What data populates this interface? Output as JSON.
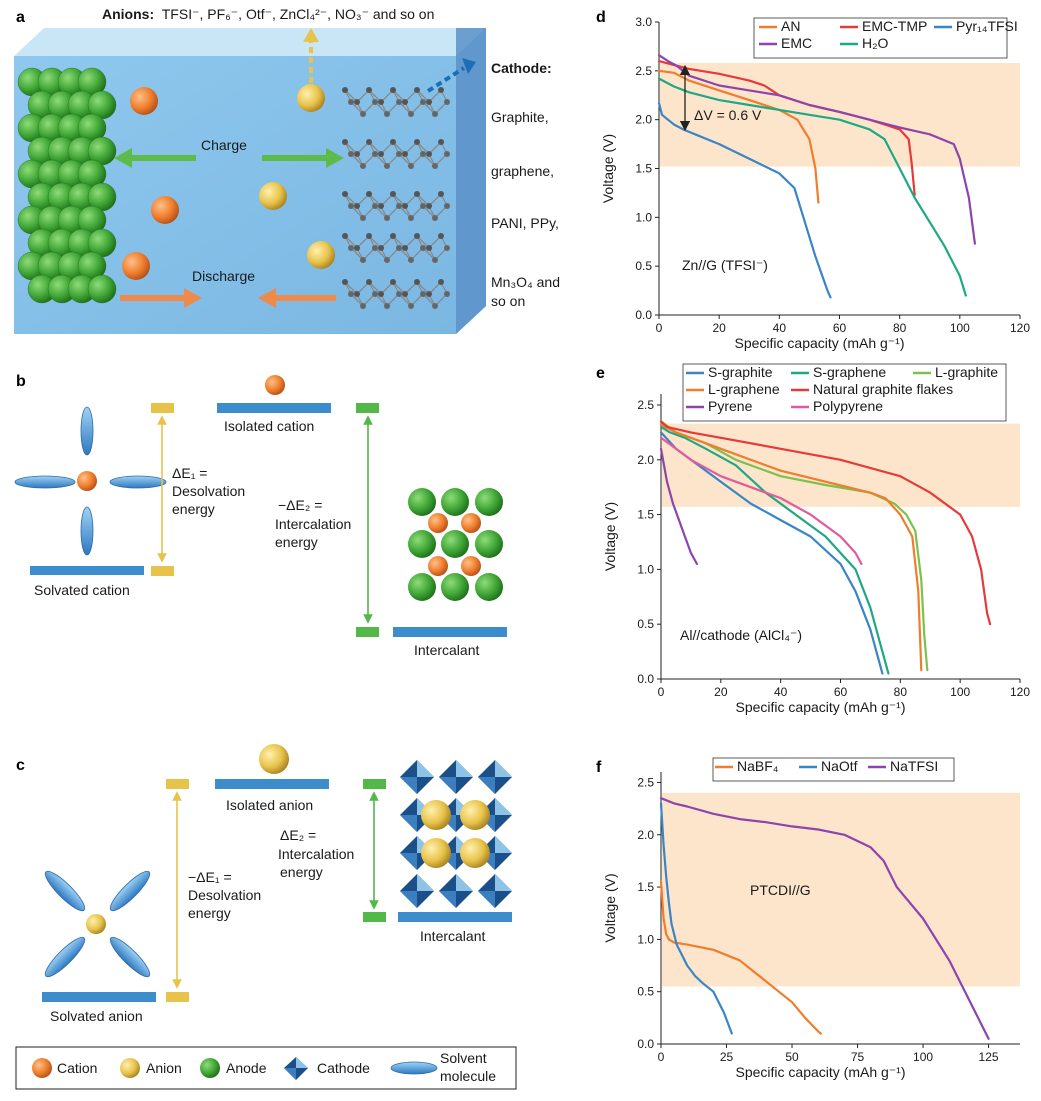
{
  "panels": {
    "a": "a",
    "b": "b",
    "c": "c",
    "d": "d",
    "e": "e",
    "f": "f"
  },
  "panel_a": {
    "anions_label": "Anions:",
    "anions_list": "TFSI⁻, PF₆⁻, Otf⁻, ZnCl₄²⁻, NO₃⁻ and so on",
    "cathode_title": "Cathode:",
    "cathode_items": [
      "Graphite,",
      "graphene,",
      "PANI, PPy,",
      "Mn₃O₄ and",
      "so on"
    ],
    "charge": "Charge",
    "discharge": "Discharge"
  },
  "panel_b": {
    "isolated": "Isolated cation",
    "solvated": "Solvated cation",
    "de1": [
      "ΔE₁ =",
      "Desolvation",
      "energy"
    ],
    "de2": [
      "−ΔE₂ =",
      "Intercalation",
      "energy"
    ],
    "intercalant": "Intercalant"
  },
  "panel_c": {
    "isolated": "Isolated anion",
    "solvated": "Solvated anion",
    "de1": [
      "−ΔE₁ =",
      "Desolvation",
      "energy"
    ],
    "de2": [
      "ΔE₂ =",
      "Intercalation",
      "energy"
    ],
    "intercalant": "Intercalant"
  },
  "legend": {
    "cation": "Cation",
    "anion": "Anion",
    "anode": "Anode",
    "cathode": "Cathode",
    "solvent": [
      "Solvent",
      "molecule"
    ]
  },
  "colors": {
    "cation": "#ef7d2b",
    "anion": "#e8c34a",
    "anode": "#4caf3e",
    "bar_blue": "#3d8ccc",
    "bar_yellow": "#e8c34a",
    "bar_green": "#52b848",
    "band": "#fde5cc",
    "cathode_dark": "#1b4f8a",
    "cathode_light": "#8ec3e8"
  },
  "chart_data": [
    {
      "type": "line",
      "panel": "d",
      "xlabel": "Specific capacity (mAh g⁻¹)",
      "ylabel": "Voltage (V)",
      "xlim": [
        0,
        120
      ],
      "ylim": [
        0,
        3.0
      ],
      "xticks": [
        "0",
        "20",
        "40",
        "60",
        "80",
        "100",
        "120"
      ],
      "yticks": [
        "0.0",
        "0.5",
        "1.0",
        "1.5",
        "2.0",
        "2.5",
        "3.0"
      ],
      "annotation": "Zn//G (TFSI⁻)",
      "dv_label": "ΔV = 0.6 V",
      "band": [
        1.52,
        2.58
      ],
      "legend_rows": [
        [
          "AN",
          "EMC-TMP",
          "Pyr₁₄TFSI"
        ],
        [
          "EMC",
          "H₂O"
        ]
      ],
      "series": [
        {
          "name": "AN",
          "color": "#ef7d2b",
          "x": [
            0,
            5,
            10,
            20,
            30,
            40,
            46,
            50,
            52,
            53
          ],
          "y": [
            2.5,
            2.48,
            2.4,
            2.3,
            2.2,
            2.1,
            2.0,
            1.8,
            1.5,
            1.15
          ]
        },
        {
          "name": "EMC-TMP",
          "color": "#e63a3a",
          "x": [
            0,
            5,
            10,
            20,
            30,
            35,
            40,
            50,
            60,
            70,
            80,
            83,
            84,
            85
          ],
          "y": [
            2.6,
            2.56,
            2.52,
            2.47,
            2.4,
            2.35,
            2.25,
            2.15,
            2.08,
            2.0,
            1.9,
            1.8,
            1.55,
            1.23
          ]
        },
        {
          "name": "Pyr₁₄TFSI",
          "color": "#3a85c6",
          "x": [
            0,
            1,
            3,
            5,
            8,
            12,
            20,
            30,
            40,
            45,
            48,
            52,
            56,
            57
          ],
          "y": [
            2.17,
            2.05,
            2.0,
            1.95,
            1.9,
            1.85,
            1.75,
            1.6,
            1.45,
            1.3,
            1.0,
            0.6,
            0.25,
            0.18
          ]
        },
        {
          "name": "EMC",
          "color": "#8e44ad",
          "x": [
            0,
            3,
            6,
            10,
            20,
            30,
            40,
            50,
            60,
            70,
            80,
            90,
            98,
            100,
            103,
            105
          ],
          "y": [
            2.66,
            2.6,
            2.55,
            2.45,
            2.35,
            2.3,
            2.25,
            2.15,
            2.08,
            2.0,
            1.92,
            1.85,
            1.75,
            1.6,
            1.2,
            0.73
          ]
        },
        {
          "name": "H₂O",
          "color": "#1ea884",
          "x": [
            0,
            5,
            10,
            20,
            30,
            40,
            50,
            60,
            70,
            75,
            80,
            85,
            90,
            95,
            100,
            102
          ],
          "y": [
            2.42,
            2.34,
            2.28,
            2.2,
            2.15,
            2.1,
            2.05,
            2.0,
            1.9,
            1.8,
            1.5,
            1.2,
            0.95,
            0.7,
            0.4,
            0.2
          ]
        }
      ]
    },
    {
      "type": "line",
      "panel": "e",
      "xlabel": "Specific capacity (mAh g⁻¹)",
      "ylabel": "Voltage (V)",
      "xlim": [
        0,
        120
      ],
      "ylim": [
        0,
        2.6
      ],
      "xticks": [
        "0",
        "20",
        "40",
        "60",
        "80",
        "100",
        "120"
      ],
      "yticks": [
        "0.0",
        "0.5",
        "1.0",
        "1.5",
        "2.0",
        "2.5"
      ],
      "annotation": "Al//cathode (AlCl₄⁻)",
      "band": [
        1.57,
        2.33
      ],
      "legend_rows": [
        [
          "S-graphite",
          "S-graphene",
          "L-graphite"
        ],
        [
          "L-graphene",
          "Natural graphite flakes"
        ],
        [
          "Pyrene",
          "Polypyrene"
        ]
      ],
      "series": [
        {
          "name": "S-graphite",
          "color": "#3a85c6",
          "x": [
            0,
            5,
            10,
            20,
            30,
            40,
            50,
            60,
            65,
            70,
            73,
            74
          ],
          "y": [
            2.25,
            2.1,
            2.0,
            1.8,
            1.6,
            1.45,
            1.3,
            1.05,
            0.8,
            0.45,
            0.15,
            0.05
          ]
        },
        {
          "name": "S-graphene",
          "color": "#1ea884",
          "x": [
            0,
            3,
            8,
            15,
            25,
            35,
            45,
            55,
            65,
            70,
            74,
            76
          ],
          "y": [
            2.3,
            2.25,
            2.2,
            2.1,
            1.95,
            1.7,
            1.5,
            1.3,
            1.0,
            0.65,
            0.25,
            0.05
          ]
        },
        {
          "name": "L-graphite",
          "color": "#7dc04b",
          "x": [
            0,
            5,
            15,
            25,
            40,
            55,
            70,
            78,
            82,
            85,
            87,
            88,
            89
          ],
          "y": [
            2.35,
            2.25,
            2.15,
            2.0,
            1.85,
            1.77,
            1.7,
            1.6,
            1.5,
            1.35,
            0.9,
            0.4,
            0.08
          ]
        },
        {
          "name": "L-graphene",
          "color": "#ef7d2b",
          "x": [
            0,
            5,
            15,
            25,
            40,
            55,
            70,
            75,
            80,
            84,
            86,
            87
          ],
          "y": [
            2.32,
            2.25,
            2.15,
            2.05,
            1.9,
            1.8,
            1.7,
            1.65,
            1.5,
            1.3,
            0.8,
            0.08
          ]
        },
        {
          "name": "Natural graphite flakes",
          "color": "#e63a3a",
          "x": [
            0,
            2,
            10,
            20,
            40,
            60,
            80,
            90,
            100,
            104,
            107,
            109,
            110
          ],
          "y": [
            2.35,
            2.3,
            2.25,
            2.2,
            2.1,
            2.0,
            1.85,
            1.7,
            1.5,
            1.3,
            1.0,
            0.6,
            0.5
          ]
        },
        {
          "name": "Pyrene",
          "color": "#8e44ad",
          "x": [
            0,
            2,
            4,
            6,
            8,
            10,
            12
          ],
          "y": [
            2.1,
            1.8,
            1.6,
            1.45,
            1.3,
            1.15,
            1.05
          ]
        },
        {
          "name": "Polypyrene",
          "color": "#e05c9a",
          "x": [
            0,
            5,
            10,
            20,
            30,
            40,
            50,
            55,
            60,
            65,
            67
          ],
          "y": [
            2.2,
            2.1,
            2.0,
            1.85,
            1.75,
            1.65,
            1.5,
            1.4,
            1.3,
            1.15,
            1.05
          ]
        }
      ]
    },
    {
      "type": "line",
      "panel": "f",
      "xlabel": "Specific capacity (mAh g⁻¹)",
      "ylabel": "Voltage (V)",
      "xlim": [
        0,
        137
      ],
      "ylim": [
        0,
        2.6
      ],
      "xticks": [
        "0",
        "25",
        "50",
        "75",
        "100",
        "125"
      ],
      "yticks": [
        "0.0",
        "0.5",
        "1.0",
        "1.5",
        "2.0",
        "2.5"
      ],
      "annotation": "PTCDI//G",
      "band": [
        0.55,
        2.4
      ],
      "legend_rows": [
        [
          "NaBF₄",
          "NaOtf",
          "NaTFSI"
        ]
      ],
      "series": [
        {
          "name": "NaBF₄",
          "color": "#ef7d2b",
          "x": [
            0,
            1,
            2,
            3,
            5,
            10,
            20,
            30,
            40,
            50,
            55,
            60,
            61
          ],
          "y": [
            1.55,
            1.2,
            1.05,
            1.0,
            0.97,
            0.95,
            0.9,
            0.8,
            0.6,
            0.4,
            0.25,
            0.12,
            0.1
          ]
        },
        {
          "name": "NaOtf",
          "color": "#3a85c6",
          "x": [
            0,
            1,
            2,
            3,
            4,
            6,
            8,
            10,
            13,
            16,
            20,
            24,
            27
          ],
          "y": [
            2.3,
            1.9,
            1.6,
            1.35,
            1.15,
            0.95,
            0.85,
            0.75,
            0.65,
            0.58,
            0.5,
            0.3,
            0.1
          ]
        },
        {
          "name": "NaTFSI",
          "color": "#8e44ad",
          "x": [
            0,
            5,
            10,
            20,
            30,
            40,
            50,
            60,
            70,
            80,
            85,
            90,
            100,
            110,
            120,
            125
          ],
          "y": [
            2.35,
            2.3,
            2.27,
            2.2,
            2.15,
            2.12,
            2.08,
            2.05,
            2.0,
            1.88,
            1.75,
            1.5,
            1.2,
            0.8,
            0.3,
            0.05
          ]
        }
      ]
    }
  ]
}
